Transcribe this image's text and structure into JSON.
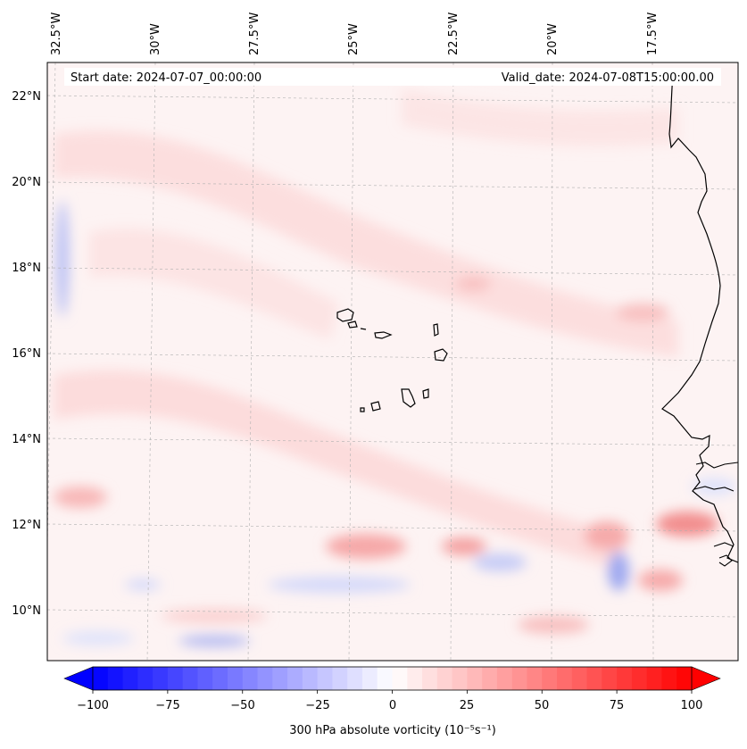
{
  "header": {
    "start_date": "Start date: 2024-07-07_00:00:00",
    "valid_date": "Valid_date: 2024-07-08T15:00:00.00"
  },
  "map": {
    "region": "Eastern tropical North Atlantic (Cabo Verde and West African coast)",
    "lon_ticks": [
      "32.5°W",
      "30°W",
      "27.5°W",
      "25°W",
      "22.5°W",
      "20°W",
      "17.5°W"
    ],
    "lat_ticks": [
      "22°N",
      "20°N",
      "18°N",
      "16°N",
      "14°N",
      "12°N",
      "10°N"
    ],
    "grid": true,
    "coastline_color": "#000000",
    "field": "300 hPa absolute vorticity"
  },
  "colorbar": {
    "label": "300 hPa absolute vorticity (10⁻⁵s⁻¹)",
    "tick_labels": [
      "−100",
      "−75",
      "−50",
      "−25",
      "0",
      "25",
      "50",
      "75",
      "100"
    ],
    "min": -100,
    "max": 100,
    "colormap": "bwr",
    "extend": "both",
    "colors": {
      "negative": "#0000ff",
      "neutral": "#ffffff",
      "positive": "#ff0000"
    }
  }
}
